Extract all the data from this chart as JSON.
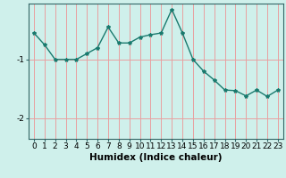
{
  "x": [
    0,
    1,
    2,
    3,
    4,
    5,
    6,
    7,
    8,
    9,
    10,
    11,
    12,
    13,
    14,
    15,
    16,
    17,
    18,
    19,
    20,
    21,
    22,
    23
  ],
  "y": [
    -0.55,
    -0.75,
    -1.0,
    -1.0,
    -1.0,
    -0.9,
    -0.8,
    -0.45,
    -0.72,
    -0.72,
    -0.62,
    -0.58,
    -0.55,
    -0.15,
    -0.55,
    -1.0,
    -1.2,
    -1.35,
    -1.52,
    -1.53,
    -1.62,
    -1.52,
    -1.63,
    -1.52
  ],
  "line_color": "#1a7a6e",
  "marker": "*",
  "bg_color": "#cff0eb",
  "vgrid_color": "#e8a0a0",
  "hgrid_color": "#e8a0a0",
  "xlabel": "Humidex (Indice chaleur)",
  "yticks": [
    -2,
    -1
  ],
  "xticks": [
    0,
    1,
    2,
    3,
    4,
    5,
    6,
    7,
    8,
    9,
    10,
    11,
    12,
    13,
    14,
    15,
    16,
    17,
    18,
    19,
    20,
    21,
    22,
    23
  ],
  "ylim": [
    -2.35,
    -0.05
  ],
  "xlim": [
    -0.5,
    23.5
  ],
  "linewidth": 1.0,
  "markersize": 3,
  "xlabel_fontsize": 7.5,
  "tick_fontsize": 6.5
}
